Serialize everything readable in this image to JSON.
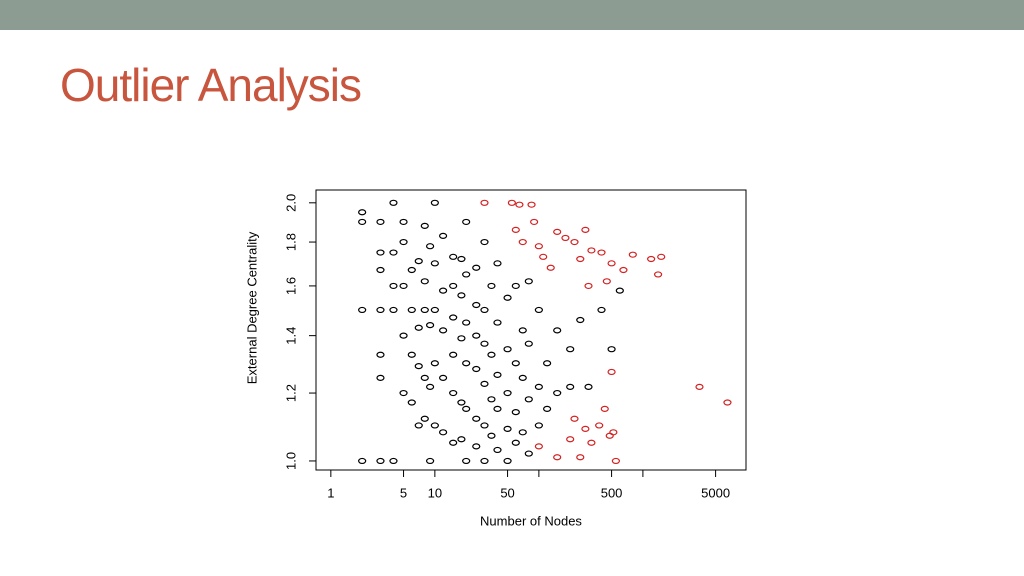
{
  "slide": {
    "title": "Outlier Analysis"
  },
  "chart_data": {
    "type": "scatter",
    "x_label": "Number of Nodes",
    "y_label": "External Degree Centrality",
    "x_log": true,
    "y_log": true,
    "xlim": [
      0.72,
      9800
    ],
    "ylim": [
      0.976,
      2.07
    ],
    "xticks": [
      1,
      5,
      10,
      50,
      500,
      5000
    ],
    "xminorticks": [
      100,
      1000
    ],
    "yticks": [
      {
        "value": 1,
        "label": "1.0"
      },
      1.2,
      1.4,
      1.6,
      1.8,
      {
        "value": 2,
        "label": "2.0"
      }
    ],
    "series": [
      {
        "color": "#000000",
        "points": [
          [
            2,
            1
          ],
          [
            2,
            1.5
          ],
          [
            2,
            1.9
          ],
          [
            2,
            1.95
          ],
          [
            3,
            1
          ],
          [
            3,
            1.25
          ],
          [
            3,
            1.33
          ],
          [
            3,
            1.5
          ],
          [
            3,
            1.67
          ],
          [
            3,
            1.75
          ],
          [
            3,
            1.9
          ],
          [
            4,
            1
          ],
          [
            4,
            1.5
          ],
          [
            4,
            1.6
          ],
          [
            4,
            1.75
          ],
          [
            4,
            2
          ],
          [
            5,
            1.2
          ],
          [
            5,
            1.4
          ],
          [
            5,
            1.6
          ],
          [
            5,
            1.8
          ],
          [
            5,
            1.9
          ],
          [
            6,
            1.17
          ],
          [
            6,
            1.33
          ],
          [
            6,
            1.5
          ],
          [
            6,
            1.67
          ],
          [
            7,
            1.1
          ],
          [
            7,
            1.29
          ],
          [
            7,
            1.43
          ],
          [
            7,
            1.71
          ],
          [
            8,
            1.12
          ],
          [
            8,
            1.25
          ],
          [
            8,
            1.5
          ],
          [
            8,
            1.62
          ],
          [
            8,
            1.88
          ],
          [
            9,
            1
          ],
          [
            9,
            1.22
          ],
          [
            9,
            1.44
          ],
          [
            9,
            1.78
          ],
          [
            10,
            1.1
          ],
          [
            10,
            1.3
          ],
          [
            10,
            1.5
          ],
          [
            10,
            1.7
          ],
          [
            10,
            2
          ],
          [
            12,
            1.08
          ],
          [
            12,
            1.25
          ],
          [
            12,
            1.42
          ],
          [
            12,
            1.58
          ],
          [
            12,
            1.83
          ],
          [
            15,
            1.05
          ],
          [
            15,
            1.2
          ],
          [
            15,
            1.33
          ],
          [
            15,
            1.47
          ],
          [
            15,
            1.6
          ],
          [
            15,
            1.73
          ],
          [
            18,
            1.06
          ],
          [
            18,
            1.17
          ],
          [
            18,
            1.39
          ],
          [
            18,
            1.56
          ],
          [
            18,
            1.72
          ],
          [
            20,
            1
          ],
          [
            20,
            1.15
          ],
          [
            20,
            1.3
          ],
          [
            20,
            1.45
          ],
          [
            20,
            1.65
          ],
          [
            20,
            1.9
          ],
          [
            25,
            1.04
          ],
          [
            25,
            1.12
          ],
          [
            25,
            1.28
          ],
          [
            25,
            1.4
          ],
          [
            25,
            1.52
          ],
          [
            25,
            1.68
          ],
          [
            30,
            1
          ],
          [
            30,
            1.1
          ],
          [
            30,
            1.23
          ],
          [
            30,
            1.37
          ],
          [
            30,
            1.5
          ],
          [
            30,
            1.8
          ],
          [
            35,
            1.07
          ],
          [
            35,
            1.18
          ],
          [
            35,
            1.33
          ],
          [
            35,
            1.6
          ],
          [
            40,
            1.03
          ],
          [
            40,
            1.15
          ],
          [
            40,
            1.26
          ],
          [
            40,
            1.45
          ],
          [
            40,
            1.7
          ],
          [
            50,
            1
          ],
          [
            50,
            1.09
          ],
          [
            50,
            1.2
          ],
          [
            50,
            1.35
          ],
          [
            50,
            1.55
          ],
          [
            60,
            1.05
          ],
          [
            60,
            1.14
          ],
          [
            60,
            1.3
          ],
          [
            60,
            1.6
          ],
          [
            70,
            1.08
          ],
          [
            70,
            1.25
          ],
          [
            70,
            1.42
          ],
          [
            80,
            1.02
          ],
          [
            80,
            1.18
          ],
          [
            80,
            1.37
          ],
          [
            80,
            1.62
          ],
          [
            100,
            1.1
          ],
          [
            100,
            1.22
          ],
          [
            100,
            1.5
          ],
          [
            120,
            1.15
          ],
          [
            120,
            1.3
          ],
          [
            150,
            1.2
          ],
          [
            150,
            1.42
          ],
          [
            200,
            1.22
          ],
          [
            200,
            1.35
          ],
          [
            250,
            1.46
          ],
          [
            300,
            1.22
          ],
          [
            400,
            1.5
          ],
          [
            500,
            1.35
          ],
          [
            600,
            1.58
          ]
        ]
      },
      {
        "color": "#d42020",
        "points": [
          [
            30,
            2
          ],
          [
            55,
            2
          ],
          [
            65,
            1.99
          ],
          [
            85,
            1.99
          ],
          [
            90,
            1.9
          ],
          [
            60,
            1.86
          ],
          [
            70,
            1.8
          ],
          [
            100,
            1.78
          ],
          [
            110,
            1.73
          ],
          [
            130,
            1.68
          ],
          [
            150,
            1.85
          ],
          [
            180,
            1.82
          ],
          [
            220,
            1.8
          ],
          [
            250,
            1.72
          ],
          [
            280,
            1.86
          ],
          [
            320,
            1.76
          ],
          [
            400,
            1.75
          ],
          [
            500,
            1.7
          ],
          [
            650,
            1.67
          ],
          [
            800,
            1.74
          ],
          [
            1200,
            1.72
          ],
          [
            1500,
            1.73
          ],
          [
            1400,
            1.65
          ],
          [
            300,
            1.6
          ],
          [
            450,
            1.62
          ],
          [
            500,
            1.27
          ],
          [
            3500,
            1.22
          ],
          [
            6500,
            1.17
          ],
          [
            100,
            1.04
          ],
          [
            150,
            1.01
          ],
          [
            200,
            1.06
          ],
          [
            250,
            1.01
          ],
          [
            280,
            1.09
          ],
          [
            320,
            1.05
          ],
          [
            380,
            1.1
          ],
          [
            430,
            1.15
          ],
          [
            480,
            1.07
          ],
          [
            520,
            1.08
          ],
          [
            550,
            1
          ],
          [
            220,
            1.12
          ]
        ]
      }
    ]
  }
}
